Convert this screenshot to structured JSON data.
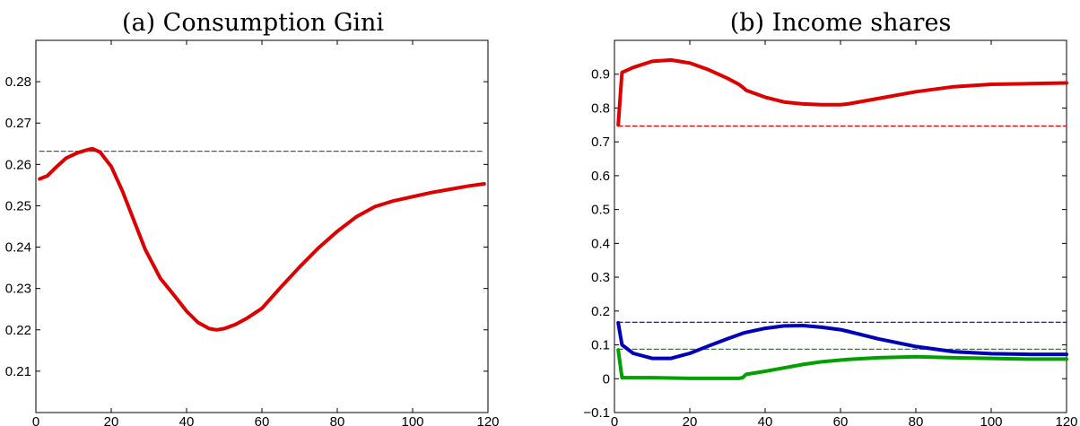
{
  "chart_data": [
    {
      "type": "line",
      "title": "(a) Consumption Gini",
      "xlabel": "",
      "ylabel": "",
      "xlim": [
        0,
        120
      ],
      "ylim": [
        0.2,
        0.29
      ],
      "xticks": [
        0,
        20,
        40,
        60,
        80,
        100,
        120
      ],
      "yticks": [
        0.21,
        0.22,
        0.23,
        0.24,
        0.25,
        0.26,
        0.27,
        0.28
      ],
      "x": [
        1,
        3,
        5,
        8,
        11,
        14,
        15,
        17,
        20,
        23,
        26,
        29,
        33,
        37,
        40,
        43,
        46,
        48,
        50,
        53,
        56,
        60,
        65,
        70,
        75,
        80,
        85,
        90,
        95,
        100,
        105,
        110,
        115,
        119
      ],
      "series": [
        {
          "color": "#dd0000",
          "style": "solid",
          "values": [
            0.2565,
            0.2572,
            0.259,
            0.2615,
            0.2628,
            0.2636,
            0.2638,
            0.263,
            0.2595,
            0.2535,
            0.2465,
            0.2395,
            0.2325,
            0.228,
            0.2245,
            0.2218,
            0.2203,
            0.22,
            0.2203,
            0.2213,
            0.2228,
            0.2252,
            0.2303,
            0.2352,
            0.2398,
            0.2438,
            0.2473,
            0.2498,
            0.2512,
            0.2522,
            0.2532,
            0.254,
            0.2548,
            0.2553
          ]
        },
        {
          "color": "#555555",
          "style": "dashed",
          "values": [
            0.2632,
            0.2632,
            0.2632,
            0.2632,
            0.2632,
            0.2632,
            0.2632,
            0.2632,
            0.2632,
            0.2632,
            0.2632,
            0.2632,
            0.2632,
            0.2632,
            0.2632,
            0.2632,
            0.2632,
            0.2632,
            0.2632,
            0.2632,
            0.2632,
            0.2632,
            0.2632,
            0.2632,
            0.2632,
            0.2632,
            0.2632,
            0.2632,
            0.2632,
            0.2632,
            0.2632,
            0.2632,
            0.2632,
            0.2632
          ]
        }
      ]
    },
    {
      "type": "line",
      "title": "(b) Income shares",
      "xlabel": "",
      "ylabel": "",
      "xlim": [
        0,
        120
      ],
      "ylim": [
        -0.1,
        1.0
      ],
      "xticks": [
        0,
        20,
        40,
        60,
        80,
        100,
        120
      ],
      "yticks": [
        -0.1,
        0,
        0.1,
        0.2,
        0.3,
        0.4,
        0.5,
        0.6,
        0.7,
        0.8,
        0.9
      ],
      "x": [
        1,
        2,
        5,
        10,
        15,
        20,
        25,
        30,
        33,
        34,
        35,
        40,
        45,
        50,
        55,
        60,
        62,
        70,
        80,
        90,
        100,
        110,
        120
      ],
      "series": [
        {
          "color": "#dd0000",
          "style": "solid",
          "values": [
            0.75,
            0.905,
            0.92,
            0.938,
            0.942,
            0.933,
            0.913,
            0.888,
            0.87,
            0.862,
            0.852,
            0.832,
            0.818,
            0.812,
            0.81,
            0.81,
            0.812,
            0.828,
            0.848,
            0.863,
            0.87,
            0.872,
            0.874
          ]
        },
        {
          "color": "#0000bb",
          "style": "solid",
          "values": [
            0.165,
            0.1,
            0.075,
            0.06,
            0.06,
            0.075,
            0.097,
            0.118,
            0.13,
            0.134,
            0.137,
            0.149,
            0.156,
            0.157,
            0.152,
            0.145,
            0.14,
            0.118,
            0.095,
            0.08,
            0.074,
            0.072,
            0.072
          ]
        },
        {
          "color": "#00a000",
          "style": "solid",
          "values": [
            0.085,
            0.003,
            0.003,
            0.003,
            0.002,
            0.001,
            0.001,
            0.001,
            0.001,
            0.003,
            0.013,
            0.022,
            0.032,
            0.042,
            0.05,
            0.055,
            0.057,
            0.062,
            0.065,
            0.062,
            0.06,
            0.058,
            0.058
          ]
        },
        {
          "color": "#dd0000",
          "style": "dashed",
          "values": [
            0.747,
            0.747,
            0.747,
            0.747,
            0.747,
            0.747,
            0.747,
            0.747,
            0.747,
            0.747,
            0.747,
            0.747,
            0.747,
            0.747,
            0.747,
            0.747,
            0.747,
            0.747,
            0.747,
            0.747,
            0.747,
            0.747,
            0.747
          ]
        },
        {
          "color": "#0000bb",
          "style": "dashed",
          "values": [
            0.167,
            0.167,
            0.167,
            0.167,
            0.167,
            0.167,
            0.167,
            0.167,
            0.167,
            0.167,
            0.167,
            0.167,
            0.167,
            0.167,
            0.167,
            0.167,
            0.167,
            0.167,
            0.167,
            0.167,
            0.167,
            0.167,
            0.167
          ]
        },
        {
          "color": "#00a000",
          "style": "dashed",
          "values": [
            0.087,
            0.087,
            0.087,
            0.087,
            0.087,
            0.087,
            0.087,
            0.087,
            0.087,
            0.087,
            0.087,
            0.087,
            0.087,
            0.087,
            0.087,
            0.087,
            0.087,
            0.087,
            0.087,
            0.087,
            0.087,
            0.087,
            0.087
          ]
        }
      ]
    }
  ]
}
